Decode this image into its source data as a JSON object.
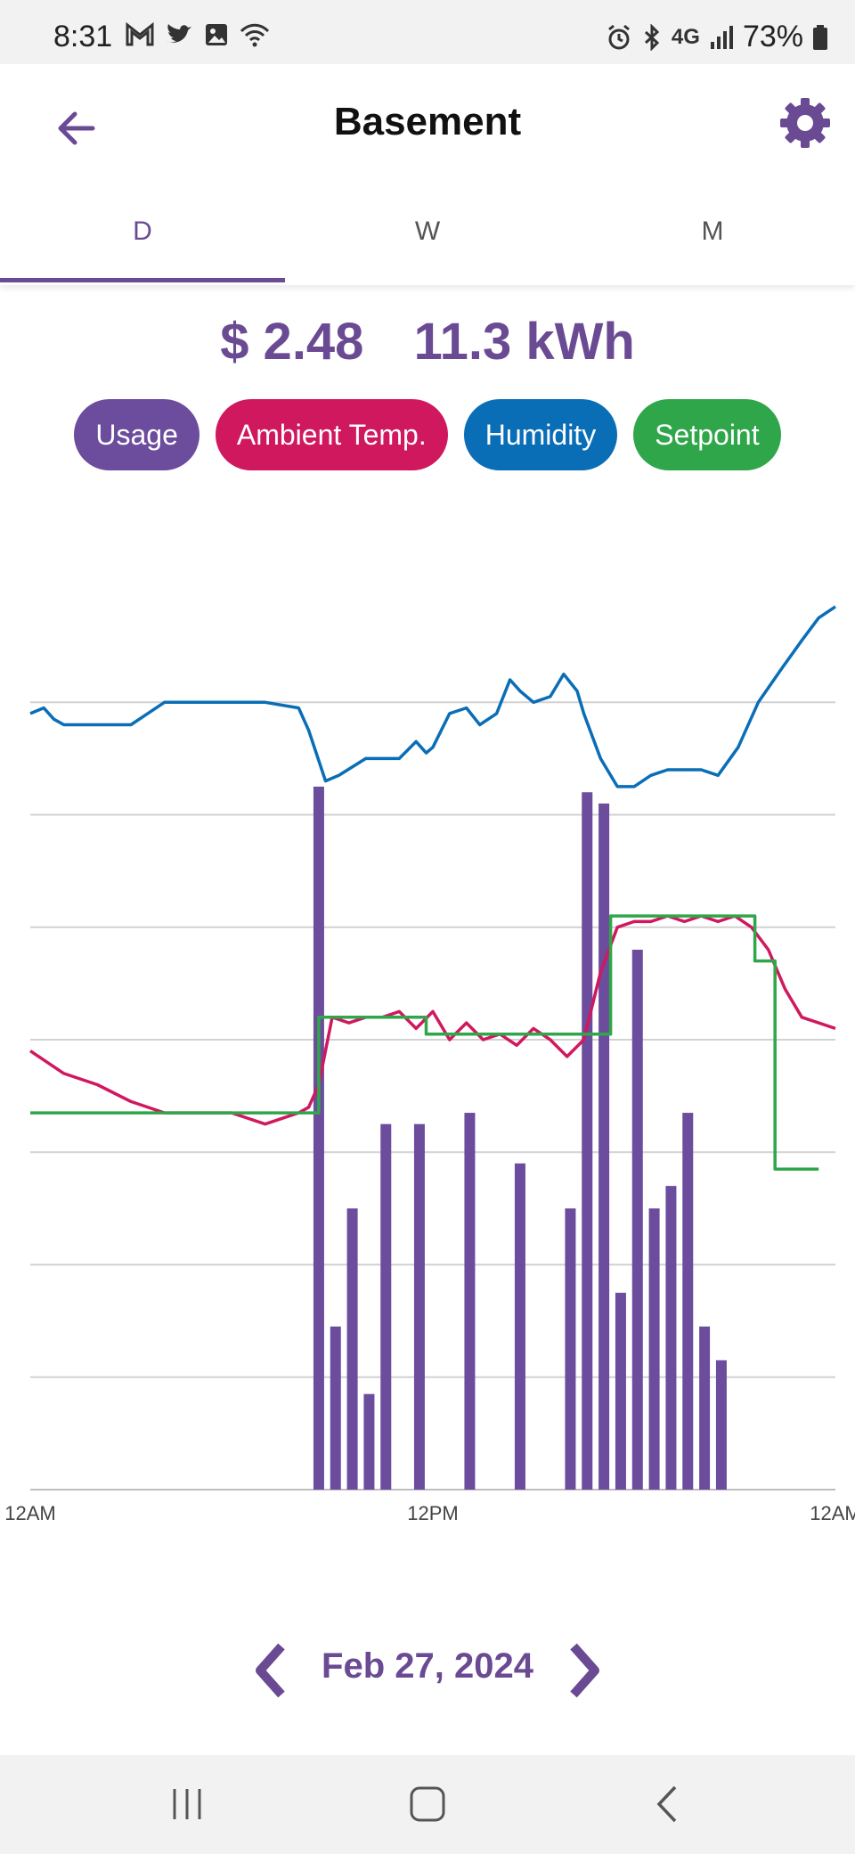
{
  "status_bar": {
    "time": "8:31",
    "battery": "73%",
    "network": "4G"
  },
  "app_bar": {
    "title": "Basement",
    "back_icon": "arrow-left-icon",
    "settings_icon": "gear-icon"
  },
  "tabs": [
    {
      "label": "D"
    },
    {
      "label": "W"
    },
    {
      "label": "M"
    }
  ],
  "active_tab": "D",
  "summary": {
    "cost": "$ 2.48",
    "energy": "11.3 kWh"
  },
  "legend": [
    {
      "label": "Usage",
      "color": "#6c4c9c"
    },
    {
      "label": "Ambient Temp.",
      "color": "#d0185f"
    },
    {
      "label": "Humidity",
      "color": "#0a6eb7"
    },
    {
      "label": "Setpoint",
      "color": "#30a64a"
    }
  ],
  "chart_data": {
    "type": "bar",
    "x_tick_labels": [
      "12AM",
      "12PM",
      "12AM"
    ],
    "x_range_hours": [
      0,
      24
    ],
    "y_gridlines": 7,
    "usage_bars": [
      {
        "hour": 8.6,
        "value": 6.25
      },
      {
        "hour": 9.1,
        "value": 1.45
      },
      {
        "hour": 9.6,
        "value": 2.5
      },
      {
        "hour": 10.1,
        "value": 0.85
      },
      {
        "hour": 10.6,
        "value": 3.25
      },
      {
        "hour": 11.6,
        "value": 3.25
      },
      {
        "hour": 13.1,
        "value": 3.35
      },
      {
        "hour": 14.6,
        "value": 2.9
      },
      {
        "hour": 16.1,
        "value": 2.5
      },
      {
        "hour": 16.6,
        "value": 6.2
      },
      {
        "hour": 17.1,
        "value": 6.1
      },
      {
        "hour": 17.6,
        "value": 1.75
      },
      {
        "hour": 18.1,
        "value": 4.8
      },
      {
        "hour": 18.6,
        "value": 2.5
      },
      {
        "hour": 19.1,
        "value": 2.7
      },
      {
        "hour": 19.6,
        "value": 3.35
      },
      {
        "hour": 20.1,
        "value": 1.45
      },
      {
        "hour": 20.6,
        "value": 1.15
      }
    ],
    "series": [
      {
        "name": "Humidity",
        "color": "#0a6eb7",
        "x": [
          0,
          0.4,
          0.7,
          1,
          2,
          3,
          3.5,
          4,
          5,
          6,
          7,
          8,
          8.3,
          8.8,
          9.2,
          10,
          11,
          11.5,
          11.8,
          12,
          12.5,
          13,
          13.4,
          13.9,
          14.3,
          14.6,
          15,
          15.5,
          15.9,
          16.3,
          16.5,
          17,
          17.5,
          18,
          18.5,
          19,
          20,
          20.5,
          21.1,
          21.7,
          22.4,
          23.0,
          23.5,
          24
        ],
        "y": [
          6.9,
          6.95,
          6.85,
          6.8,
          6.8,
          6.8,
          6.9,
          7.0,
          7.0,
          7.0,
          7.0,
          6.95,
          6.75,
          6.3,
          6.35,
          6.5,
          6.5,
          6.65,
          6.55,
          6.6,
          6.9,
          6.95,
          6.8,
          6.9,
          7.2,
          7.1,
          7.0,
          7.05,
          7.25,
          7.1,
          6.9,
          6.5,
          6.25,
          6.25,
          6.35,
          6.4,
          6.4,
          6.35,
          6.6,
          7.0,
          7.3,
          7.55,
          7.75,
          7.85
        ]
      },
      {
        "name": "Ambient Temp.",
        "color": "#d0185f",
        "x": [
          0,
          1,
          2,
          3,
          4,
          5,
          6,
          6.5,
          7,
          8,
          8.3,
          8.6,
          9,
          9.5,
          10,
          10.5,
          11,
          11.5,
          12,
          12.5,
          13,
          13.5,
          14,
          14.5,
          15,
          15.5,
          16,
          16.5,
          17,
          17.5,
          18,
          18.5,
          19,
          19.5,
          20,
          20.5,
          21,
          21.5,
          22,
          22.5,
          23,
          24
        ],
        "y": [
          3.9,
          3.7,
          3.6,
          3.45,
          3.35,
          3.35,
          3.35,
          3.3,
          3.25,
          3.35,
          3.4,
          3.6,
          4.2,
          4.15,
          4.2,
          4.2,
          4.25,
          4.1,
          4.25,
          4.0,
          4.15,
          4.0,
          4.05,
          3.95,
          4.1,
          4.0,
          3.85,
          4.0,
          4.6,
          5.0,
          5.05,
          5.05,
          5.1,
          5.05,
          5.1,
          5.05,
          5.1,
          5.0,
          4.8,
          4.45,
          4.2,
          4.1
        ]
      },
      {
        "name": "Setpoint",
        "color": "#30a64a",
        "x": [
          0,
          8.6,
          8.6,
          11.8,
          11.8,
          17.3,
          17.3,
          21.6,
          21.6,
          22.2,
          22.2,
          23.5
        ],
        "y": [
          3.35,
          3.35,
          4.2,
          4.2,
          4.05,
          4.05,
          5.1,
          5.1,
          4.7,
          4.7,
          2.85,
          2.85
        ]
      }
    ],
    "ylim": [
      0,
      8
    ]
  },
  "date_nav": {
    "date": "Feb 27, 2024",
    "prev_icon": "chevron-left-icon",
    "next_icon": "chevron-right-icon"
  },
  "nav_bar": {
    "recents_icon": "recents-icon",
    "home_icon": "home-icon",
    "back_icon": "back-icon"
  }
}
